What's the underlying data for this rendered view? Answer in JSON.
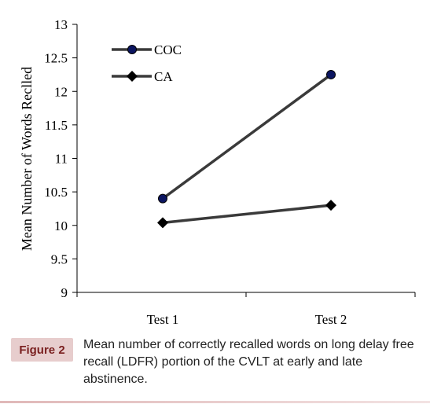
{
  "chart_data": {
    "type": "line",
    "categories": [
      "Test 1",
      "Test 2"
    ],
    "series": [
      {
        "name": "COC",
        "values": [
          10.4,
          12.25
        ],
        "marker": "circle",
        "color": "#000000",
        "marker_fill": "#0b1560"
      },
      {
        "name": "CA",
        "values": [
          10.04,
          10.3
        ],
        "marker": "diamond",
        "color": "#000000",
        "marker_fill": "#000000"
      }
    ],
    "ylabel": "Mean Number of Words Reclled",
    "xlabel": "",
    "title": "",
    "ylim": [
      9,
      13
    ],
    "yticks": [
      "9",
      "9.5",
      "10",
      "10.5",
      "11",
      "11.5",
      "12",
      "12.5",
      "13"
    ],
    "grid": false,
    "legend_position": "top-left"
  },
  "caption": {
    "badge": "Figure 2",
    "text": "Mean number of correctly recalled words on long delay free recall (LDFR) portion of the CVLT at early and late abstinence."
  },
  "colors": {
    "line": "#3a3a3a",
    "coc_marker": "#0b1560",
    "badge_bg": "#e7cdcd",
    "badge_text": "#7a1f1f"
  }
}
